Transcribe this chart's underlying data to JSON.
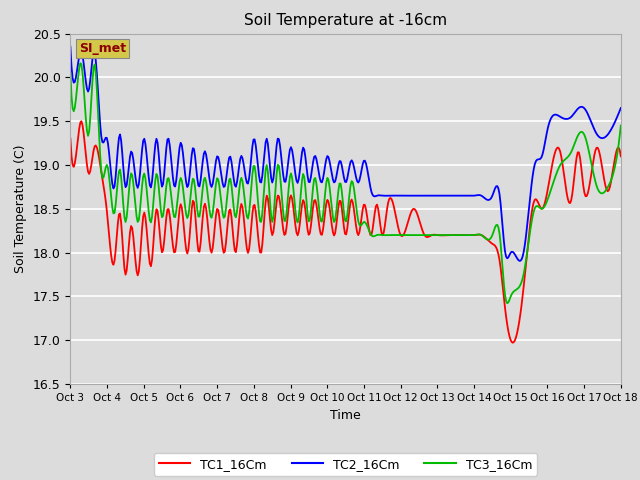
{
  "title": "Soil Temperature at -16cm",
  "xlabel": "Time",
  "ylabel": "Soil Temperature (C)",
  "ylim": [
    16.5,
    20.5
  ],
  "background_color": "#dcdcdc",
  "fig_facecolor": "#dcdcdc",
  "watermark_text": "SI_met",
  "watermark_bg": "#d4c84a",
  "watermark_fg": "#8b0000",
  "x_tick_labels": [
    "Oct 3",
    "Oct 4",
    "Oct 5",
    "Oct 6",
    "Oct 7",
    "Oct 8",
    "Oct 9",
    "Oct 10",
    "Oct 11",
    "Oct 12",
    "Oct 13",
    "Oct 14",
    "Oct 15",
    "Oct 16",
    "Oct 17",
    "Oct 18"
  ],
  "TC1_x": [
    0.0,
    0.15,
    0.3,
    0.5,
    0.65,
    0.85,
    1.0,
    1.2,
    1.35,
    1.5,
    1.65,
    1.85,
    2.0,
    2.2,
    2.35,
    2.5,
    2.65,
    2.85,
    3.0,
    3.2,
    3.35,
    3.5,
    3.65,
    3.85,
    4.0,
    4.2,
    4.35,
    4.5,
    4.65,
    4.85,
    5.0,
    5.2,
    5.35,
    5.5,
    5.65,
    5.85,
    6.0,
    6.2,
    6.35,
    6.5,
    6.65,
    6.85,
    7.0,
    7.2,
    7.35,
    7.5,
    7.65,
    7.85,
    8.0,
    8.2,
    8.35,
    8.5,
    8.65,
    9.0,
    9.35,
    9.65,
    9.85,
    10.0,
    10.35,
    10.65,
    10.85,
    11.0,
    11.2,
    11.5,
    11.7,
    11.85,
    12.0,
    12.35,
    12.65,
    12.85,
    13.0,
    13.35,
    13.65,
    13.85,
    14.0,
    14.35,
    14.65,
    14.85,
    15.0
  ],
  "TC1_y": [
    19.3,
    19.1,
    19.5,
    18.9,
    19.2,
    18.9,
    18.45,
    17.9,
    18.45,
    17.75,
    18.3,
    17.75,
    18.45,
    17.85,
    18.5,
    18.0,
    18.5,
    18.0,
    18.55,
    18.0,
    18.6,
    18.0,
    18.55,
    18.0,
    18.5,
    18.0,
    18.5,
    18.0,
    18.55,
    18.0,
    18.55,
    18.0,
    18.65,
    18.2,
    18.65,
    18.2,
    18.65,
    18.2,
    18.6,
    18.2,
    18.6,
    18.2,
    18.6,
    18.2,
    18.6,
    18.2,
    18.6,
    18.2,
    18.55,
    18.2,
    18.55,
    18.2,
    18.55,
    18.2,
    18.5,
    18.2,
    18.2,
    18.2,
    18.2,
    18.2,
    18.2,
    18.2,
    18.2,
    18.1,
    17.9,
    17.35,
    17.0,
    17.6,
    18.6,
    18.5,
    18.7,
    19.15,
    18.6,
    19.15,
    18.7,
    19.2,
    18.7,
    19.1,
    19.1
  ],
  "TC2_x": [
    0.0,
    0.15,
    0.3,
    0.5,
    0.65,
    0.85,
    1.0,
    1.2,
    1.35,
    1.5,
    1.65,
    1.85,
    2.0,
    2.2,
    2.35,
    2.5,
    2.65,
    2.85,
    3.0,
    3.2,
    3.35,
    3.5,
    3.65,
    3.85,
    4.0,
    4.2,
    4.35,
    4.5,
    4.65,
    4.85,
    5.0,
    5.2,
    5.35,
    5.5,
    5.65,
    5.85,
    6.0,
    6.2,
    6.35,
    6.5,
    6.65,
    6.85,
    7.0,
    7.2,
    7.35,
    7.5,
    7.65,
    7.85,
    8.0,
    8.2,
    8.35,
    8.5,
    8.65,
    9.0,
    9.35,
    9.65,
    9.85,
    10.0,
    10.35,
    10.65,
    10.85,
    11.0,
    11.2,
    11.5,
    11.7,
    11.85,
    12.0,
    12.35,
    12.65,
    12.85,
    13.0,
    13.35,
    13.65,
    13.85,
    14.0,
    14.35,
    14.65,
    14.85,
    15.0
  ],
  "TC2_y": [
    20.35,
    20.0,
    20.3,
    19.85,
    20.3,
    19.3,
    19.3,
    18.75,
    19.35,
    18.75,
    19.15,
    18.75,
    19.3,
    18.75,
    19.3,
    18.75,
    19.3,
    18.75,
    19.25,
    18.75,
    19.2,
    18.75,
    19.15,
    18.75,
    19.1,
    18.75,
    19.1,
    18.75,
    19.1,
    18.8,
    19.3,
    18.8,
    19.3,
    18.8,
    19.3,
    18.8,
    19.2,
    18.8,
    19.2,
    18.8,
    19.1,
    18.8,
    19.1,
    18.8,
    19.05,
    18.8,
    19.05,
    18.8,
    19.05,
    18.7,
    18.65,
    18.65,
    18.65,
    18.65,
    18.65,
    18.65,
    18.65,
    18.65,
    18.65,
    18.65,
    18.65,
    18.65,
    18.65,
    18.65,
    18.65,
    18.0,
    18.0,
    18.0,
    19.0,
    19.1,
    19.4,
    19.55,
    19.55,
    19.65,
    19.65,
    19.35,
    19.35,
    19.5,
    19.65
  ],
  "TC3_x": [
    0.0,
    0.15,
    0.3,
    0.5,
    0.65,
    0.85,
    1.0,
    1.2,
    1.35,
    1.5,
    1.65,
    1.85,
    2.0,
    2.2,
    2.35,
    2.5,
    2.65,
    2.85,
    3.0,
    3.2,
    3.35,
    3.5,
    3.65,
    3.85,
    4.0,
    4.2,
    4.35,
    4.5,
    4.65,
    4.85,
    5.0,
    5.2,
    5.35,
    5.5,
    5.65,
    5.85,
    6.0,
    6.2,
    6.35,
    6.5,
    6.65,
    6.85,
    7.0,
    7.2,
    7.35,
    7.5,
    7.65,
    7.85,
    8.0,
    8.2,
    8.35,
    8.5,
    8.65,
    9.0,
    9.35,
    9.65,
    9.85,
    10.0,
    10.35,
    10.65,
    10.85,
    11.0,
    11.2,
    11.5,
    11.7,
    11.85,
    12.0,
    12.35,
    12.65,
    12.85,
    13.0,
    13.35,
    13.65,
    13.85,
    14.0,
    14.35,
    14.65,
    14.85,
    15.0
  ],
  "TC3_y": [
    20.05,
    19.75,
    20.15,
    19.35,
    20.15,
    18.9,
    19.0,
    18.45,
    18.95,
    18.35,
    18.9,
    18.35,
    18.9,
    18.35,
    18.9,
    18.4,
    18.85,
    18.4,
    18.85,
    18.4,
    18.85,
    18.4,
    18.85,
    18.4,
    18.85,
    18.4,
    18.85,
    18.4,
    18.85,
    18.4,
    19.0,
    18.35,
    19.0,
    18.35,
    19.0,
    18.35,
    18.9,
    18.35,
    18.9,
    18.35,
    18.85,
    18.35,
    18.85,
    18.35,
    18.8,
    18.35,
    18.8,
    18.35,
    18.35,
    18.2,
    18.2,
    18.2,
    18.2,
    18.2,
    18.2,
    18.2,
    18.2,
    18.2,
    18.2,
    18.2,
    18.2,
    18.2,
    18.2,
    18.2,
    18.2,
    17.5,
    17.5,
    17.75,
    18.5,
    18.5,
    18.6,
    19.0,
    19.15,
    19.35,
    19.35,
    18.75,
    18.75,
    19.0,
    19.45
  ]
}
